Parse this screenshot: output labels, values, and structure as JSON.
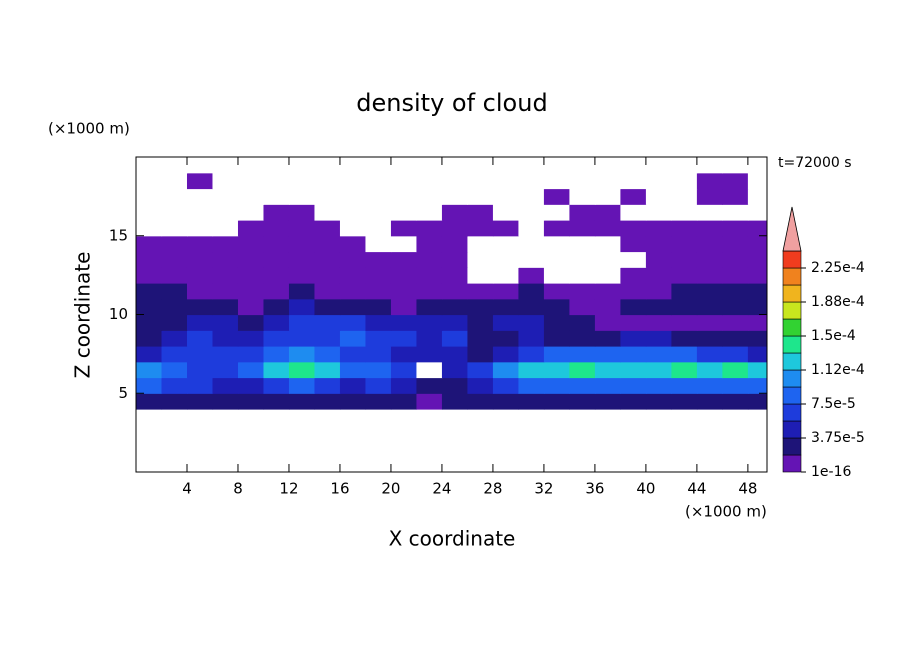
{
  "chart_data": {
    "type": "contour",
    "title": "density of cloud",
    "time_label": "t=72000 s",
    "x_label": "X coordinate",
    "y_label": "Z coordinate",
    "x_unit": "(×1000 m)",
    "y_unit": "(×1000 m)",
    "xlim": [
      0,
      49.5
    ],
    "ylim": [
      0,
      20
    ],
    "xticks": [
      4,
      8,
      12,
      16,
      20,
      24,
      28,
      32,
      36,
      40,
      44,
      48
    ],
    "yticks": [
      5,
      10,
      15
    ],
    "x": [
      1,
      3,
      5,
      7,
      9,
      11,
      13,
      15,
      17,
      19,
      21,
      23,
      25,
      27,
      29,
      31,
      33,
      35,
      37,
      39,
      41,
      43,
      45,
      47,
      49
    ],
    "z": [
      0.5,
      1.5,
      2.5,
      3.5,
      4.5,
      5.5,
      6.5,
      7.5,
      8.5,
      9.5,
      10.5,
      11.5,
      12.5,
      13.5,
      14.5,
      15.5,
      16.5,
      17.5,
      18.5,
      19.5
    ],
    "levels": [
      1e-16,
      1.875e-05,
      3.75e-05,
      5.625e-05,
      7.5e-05,
      9.375e-05,
      0.0001125,
      0.00013125,
      0.00015,
      0.00016875,
      0.0001875,
      0.00020625,
      0.000225,
      0.00024375
    ],
    "colors": [
      "#6414b4",
      "#1e1478",
      "#1e1eb4",
      "#1e3cdc",
      "#1e64f0",
      "#1e8cf0",
      "#1ec8dc",
      "#1ee68c",
      "#32d232",
      "#c8e61e",
      "#f0b41e",
      "#f0821e",
      "#f03c1e"
    ],
    "extend_color": "#f0a0a0",
    "colorbar_ticks": [
      {
        "value": 1e-16,
        "label": "1e-16"
      },
      {
        "value": 3.75e-05,
        "label": "3.75e-5"
      },
      {
        "value": 7.5e-05,
        "label": "7.5e-5"
      },
      {
        "value": 0.0001125,
        "label": "1.12e-4"
      },
      {
        "value": 0.00015,
        "label": "1.5e-4"
      },
      {
        "value": 0.0001875,
        "label": "1.88e-4"
      },
      {
        "value": 0.000225,
        "label": "2.25e-4"
      }
    ],
    "values": [
      [
        0,
        0,
        0,
        0,
        0,
        0,
        0,
        0,
        0,
        0,
        0,
        0,
        0,
        0,
        0,
        0,
        0,
        0,
        0,
        0,
        0,
        0,
        0,
        0,
        0
      ],
      [
        0,
        0,
        0,
        0,
        0,
        0,
        0,
        0,
        0,
        0,
        0,
        0,
        0,
        0,
        0,
        0,
        0,
        0,
        0,
        0,
        0,
        0,
        0,
        0,
        0
      ],
      [
        0,
        0,
        0,
        0,
        0,
        0,
        0,
        0,
        0,
        0,
        0,
        0,
        0,
        0,
        0,
        0,
        0,
        0,
        0,
        0,
        0,
        0,
        0,
        0,
        0
      ],
      [
        0,
        0,
        0,
        0,
        0,
        0,
        0,
        0,
        0,
        0,
        0,
        0,
        0,
        0,
        0,
        0,
        0,
        0,
        0,
        0,
        0,
        0,
        0,
        0,
        0
      ],
      [
        2.5e-05,
        2.5e-05,
        2.5e-05,
        2.5e-05,
        2.5e-05,
        2.5e-05,
        2.5e-05,
        2.5e-05,
        2.5e-05,
        2.5e-05,
        2.5e-05,
        5e-06,
        2.5e-05,
        2.5e-05,
        2.5e-05,
        2.5e-05,
        2.5e-05,
        2.5e-05,
        2.5e-05,
        2.5e-05,
        2.5e-05,
        2.5e-05,
        2.5e-05,
        2.5e-05,
        2.5e-05
      ],
      [
        8.5e-05,
        6.5e-05,
        6.5e-05,
        4.5e-05,
        4.5e-05,
        6.5e-05,
        8.5e-05,
        6.5e-05,
        4.5e-05,
        6.5e-05,
        4.5e-05,
        2.5e-05,
        2.5e-05,
        4.5e-05,
        6.5e-05,
        8.5e-05,
        8.5e-05,
        8.5e-05,
        8.5e-05,
        8.5e-05,
        8.5e-05,
        8.5e-05,
        8.5e-05,
        8.5e-05,
        8.5e-05
      ],
      [
        0.000105,
        8.5e-05,
        6.5e-05,
        6.5e-05,
        8.5e-05,
        0.00012,
        0.00014,
        0.00012,
        8.5e-05,
        8.5e-05,
        6.5e-05,
        0,
        4.5e-05,
        6.5e-05,
        0.000105,
        0.00012,
        0.00012,
        0.00014,
        0.00012,
        0.00012,
        0.00012,
        0.00014,
        0.00012,
        0.00014,
        0.00012
      ],
      [
        4.5e-05,
        6.5e-05,
        6.5e-05,
        6.5e-05,
        6.5e-05,
        8.5e-05,
        0.000105,
        8.5e-05,
        6.5e-05,
        6.5e-05,
        4.5e-05,
        4.5e-05,
        4.5e-05,
        2.5e-05,
        4.5e-05,
        6.5e-05,
        8.5e-05,
        8.5e-05,
        8.5e-05,
        8.5e-05,
        8.5e-05,
        8.5e-05,
        6.5e-05,
        6.5e-05,
        4.5e-05
      ],
      [
        2.5e-05,
        4.5e-05,
        6.5e-05,
        4.5e-05,
        4.5e-05,
        6.5e-05,
        6.5e-05,
        6.5e-05,
        8.5e-05,
        6.5e-05,
        6.5e-05,
        4.5e-05,
        6.5e-05,
        2.5e-05,
        2.5e-05,
        4.5e-05,
        2.5e-05,
        2.5e-05,
        2.5e-05,
        4.5e-05,
        4.5e-05,
        2.5e-05,
        2.5e-05,
        2.5e-05,
        2.5e-05
      ],
      [
        2.5e-05,
        2.5e-05,
        4.5e-05,
        4.5e-05,
        2.5e-05,
        4.5e-05,
        6.5e-05,
        6.5e-05,
        6.5e-05,
        4.5e-05,
        4.5e-05,
        4.5e-05,
        4.5e-05,
        2.5e-05,
        4.5e-05,
        4.5e-05,
        2.5e-05,
        2.5e-05,
        5e-06,
        5e-06,
        5e-06,
        5e-06,
        5e-06,
        5e-06,
        5e-06
      ],
      [
        2.5e-05,
        2.5e-05,
        2.5e-05,
        2.5e-05,
        5e-06,
        2.5e-05,
        4.5e-05,
        2.5e-05,
        2.5e-05,
        2.5e-05,
        5e-06,
        2.5e-05,
        2.5e-05,
        2.5e-05,
        2.5e-05,
        2.5e-05,
        2.5e-05,
        5e-06,
        5e-06,
        2.5e-05,
        2.5e-05,
        2.5e-05,
        2.5e-05,
        2.5e-05,
        2.5e-05
      ],
      [
        2.5e-05,
        2.5e-05,
        5e-06,
        5e-06,
        5e-06,
        5e-06,
        2.5e-05,
        5e-06,
        5e-06,
        5e-06,
        5e-06,
        5e-06,
        5e-06,
        5e-06,
        5e-06,
        2.5e-05,
        5e-06,
        5e-06,
        5e-06,
        5e-06,
        5e-06,
        2.5e-05,
        2.5e-05,
        2.5e-05,
        2.5e-05
      ],
      [
        5e-06,
        5e-06,
        5e-06,
        5e-06,
        5e-06,
        5e-06,
        5e-06,
        5e-06,
        5e-06,
        5e-06,
        5e-06,
        5e-06,
        5e-06,
        0,
        0,
        5e-06,
        0,
        0,
        0,
        5e-06,
        5e-06,
        5e-06,
        5e-06,
        5e-06,
        5e-06
      ],
      [
        5e-06,
        5e-06,
        5e-06,
        5e-06,
        5e-06,
        5e-06,
        5e-06,
        5e-06,
        5e-06,
        5e-06,
        5e-06,
        5e-06,
        5e-06,
        0,
        0,
        0,
        0,
        0,
        0,
        0,
        5e-06,
        5e-06,
        5e-06,
        5e-06,
        5e-06
      ],
      [
        5e-06,
        5e-06,
        5e-06,
        5e-06,
        5e-06,
        5e-06,
        5e-06,
        5e-06,
        5e-06,
        0,
        0,
        5e-06,
        5e-06,
        0,
        0,
        0,
        0,
        0,
        0,
        5e-06,
        5e-06,
        5e-06,
        5e-06,
        5e-06,
        5e-06
      ],
      [
        0,
        0,
        0,
        0,
        5e-06,
        5e-06,
        5e-06,
        5e-06,
        0,
        0,
        5e-06,
        5e-06,
        5e-06,
        5e-06,
        5e-06,
        0,
        5e-06,
        5e-06,
        5e-06,
        5e-06,
        5e-06,
        5e-06,
        5e-06,
        5e-06,
        5e-06
      ],
      [
        0,
        0,
        0,
        0,
        0,
        5e-06,
        5e-06,
        0,
        0,
        0,
        0,
        0,
        5e-06,
        5e-06,
        0,
        0,
        0,
        5e-06,
        5e-06,
        0,
        0,
        0,
        0,
        0,
        0
      ],
      [
        0,
        0,
        0,
        0,
        0,
        0,
        0,
        0,
        0,
        0,
        0,
        0,
        0,
        0,
        0,
        0,
        5e-06,
        0,
        0,
        5e-06,
        0,
        0,
        5e-06,
        5e-06,
        0
      ],
      [
        0,
        0,
        5e-06,
        0,
        0,
        0,
        0,
        0,
        0,
        0,
        0,
        0,
        0,
        0,
        0,
        0,
        0,
        0,
        0,
        0,
        0,
        0,
        5e-06,
        5e-06,
        0
      ],
      [
        0,
        0,
        0,
        0,
        0,
        0,
        0,
        0,
        0,
        0,
        0,
        0,
        0,
        0,
        0,
        0,
        0,
        0,
        0,
        0,
        0,
        0,
        0,
        0,
        0
      ]
    ]
  }
}
